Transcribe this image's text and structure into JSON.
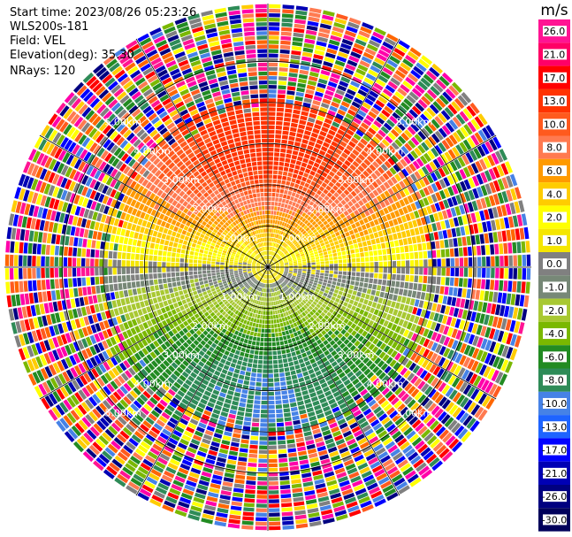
{
  "header": {
    "start_time": "Start time: 2023/08/26 05:23:26",
    "instrument": "WLS200s-181",
    "field": "Field: VEL",
    "elevation": "Elevation(deg): 35.30",
    "nrays": "NRays: 120"
  },
  "colorbar": {
    "unit": "m/s",
    "levels": [
      "26.0",
      "21.0",
      "17.0",
      "13.0",
      "10.0",
      "8.0",
      "6.0",
      "4.0",
      "2.0",
      "1.0",
      "0.0",
      "-1.0",
      "-2.0",
      "-4.0",
      "-6.0",
      "-8.0",
      "-10.0",
      "-13.0",
      "-17.0",
      "-21.0",
      "-26.0",
      "-30.0"
    ],
    "colors": [
      "#ff1493",
      "#ff0066",
      "#ff0000",
      "#ff3300",
      "#ff5a1e",
      "#ff7a50",
      "#ff9a00",
      "#ffcc00",
      "#ffff00",
      "#f5e600",
      "#808080",
      "#778877",
      "#a8c832",
      "#7ab800",
      "#228b22",
      "#2e8b57",
      "#4682e6",
      "#1e64ff",
      "#0000ff",
      "#0000b4",
      "#000080",
      "#00005a"
    ]
  },
  "chart_data": {
    "type": "polar-ppi",
    "field": "VEL",
    "units": "m/s",
    "nrays": 120,
    "range_rings": [
      "1.00km",
      "2.00km",
      "3.00km",
      "4.00km",
      "5.00km"
    ],
    "ring_label_values_km": [
      1,
      2,
      3,
      4,
      5
    ],
    "max_range_km": 6.4,
    "velocity_pattern": {
      "north_sector_max": 12,
      "south_sector_min": -10
    }
  }
}
